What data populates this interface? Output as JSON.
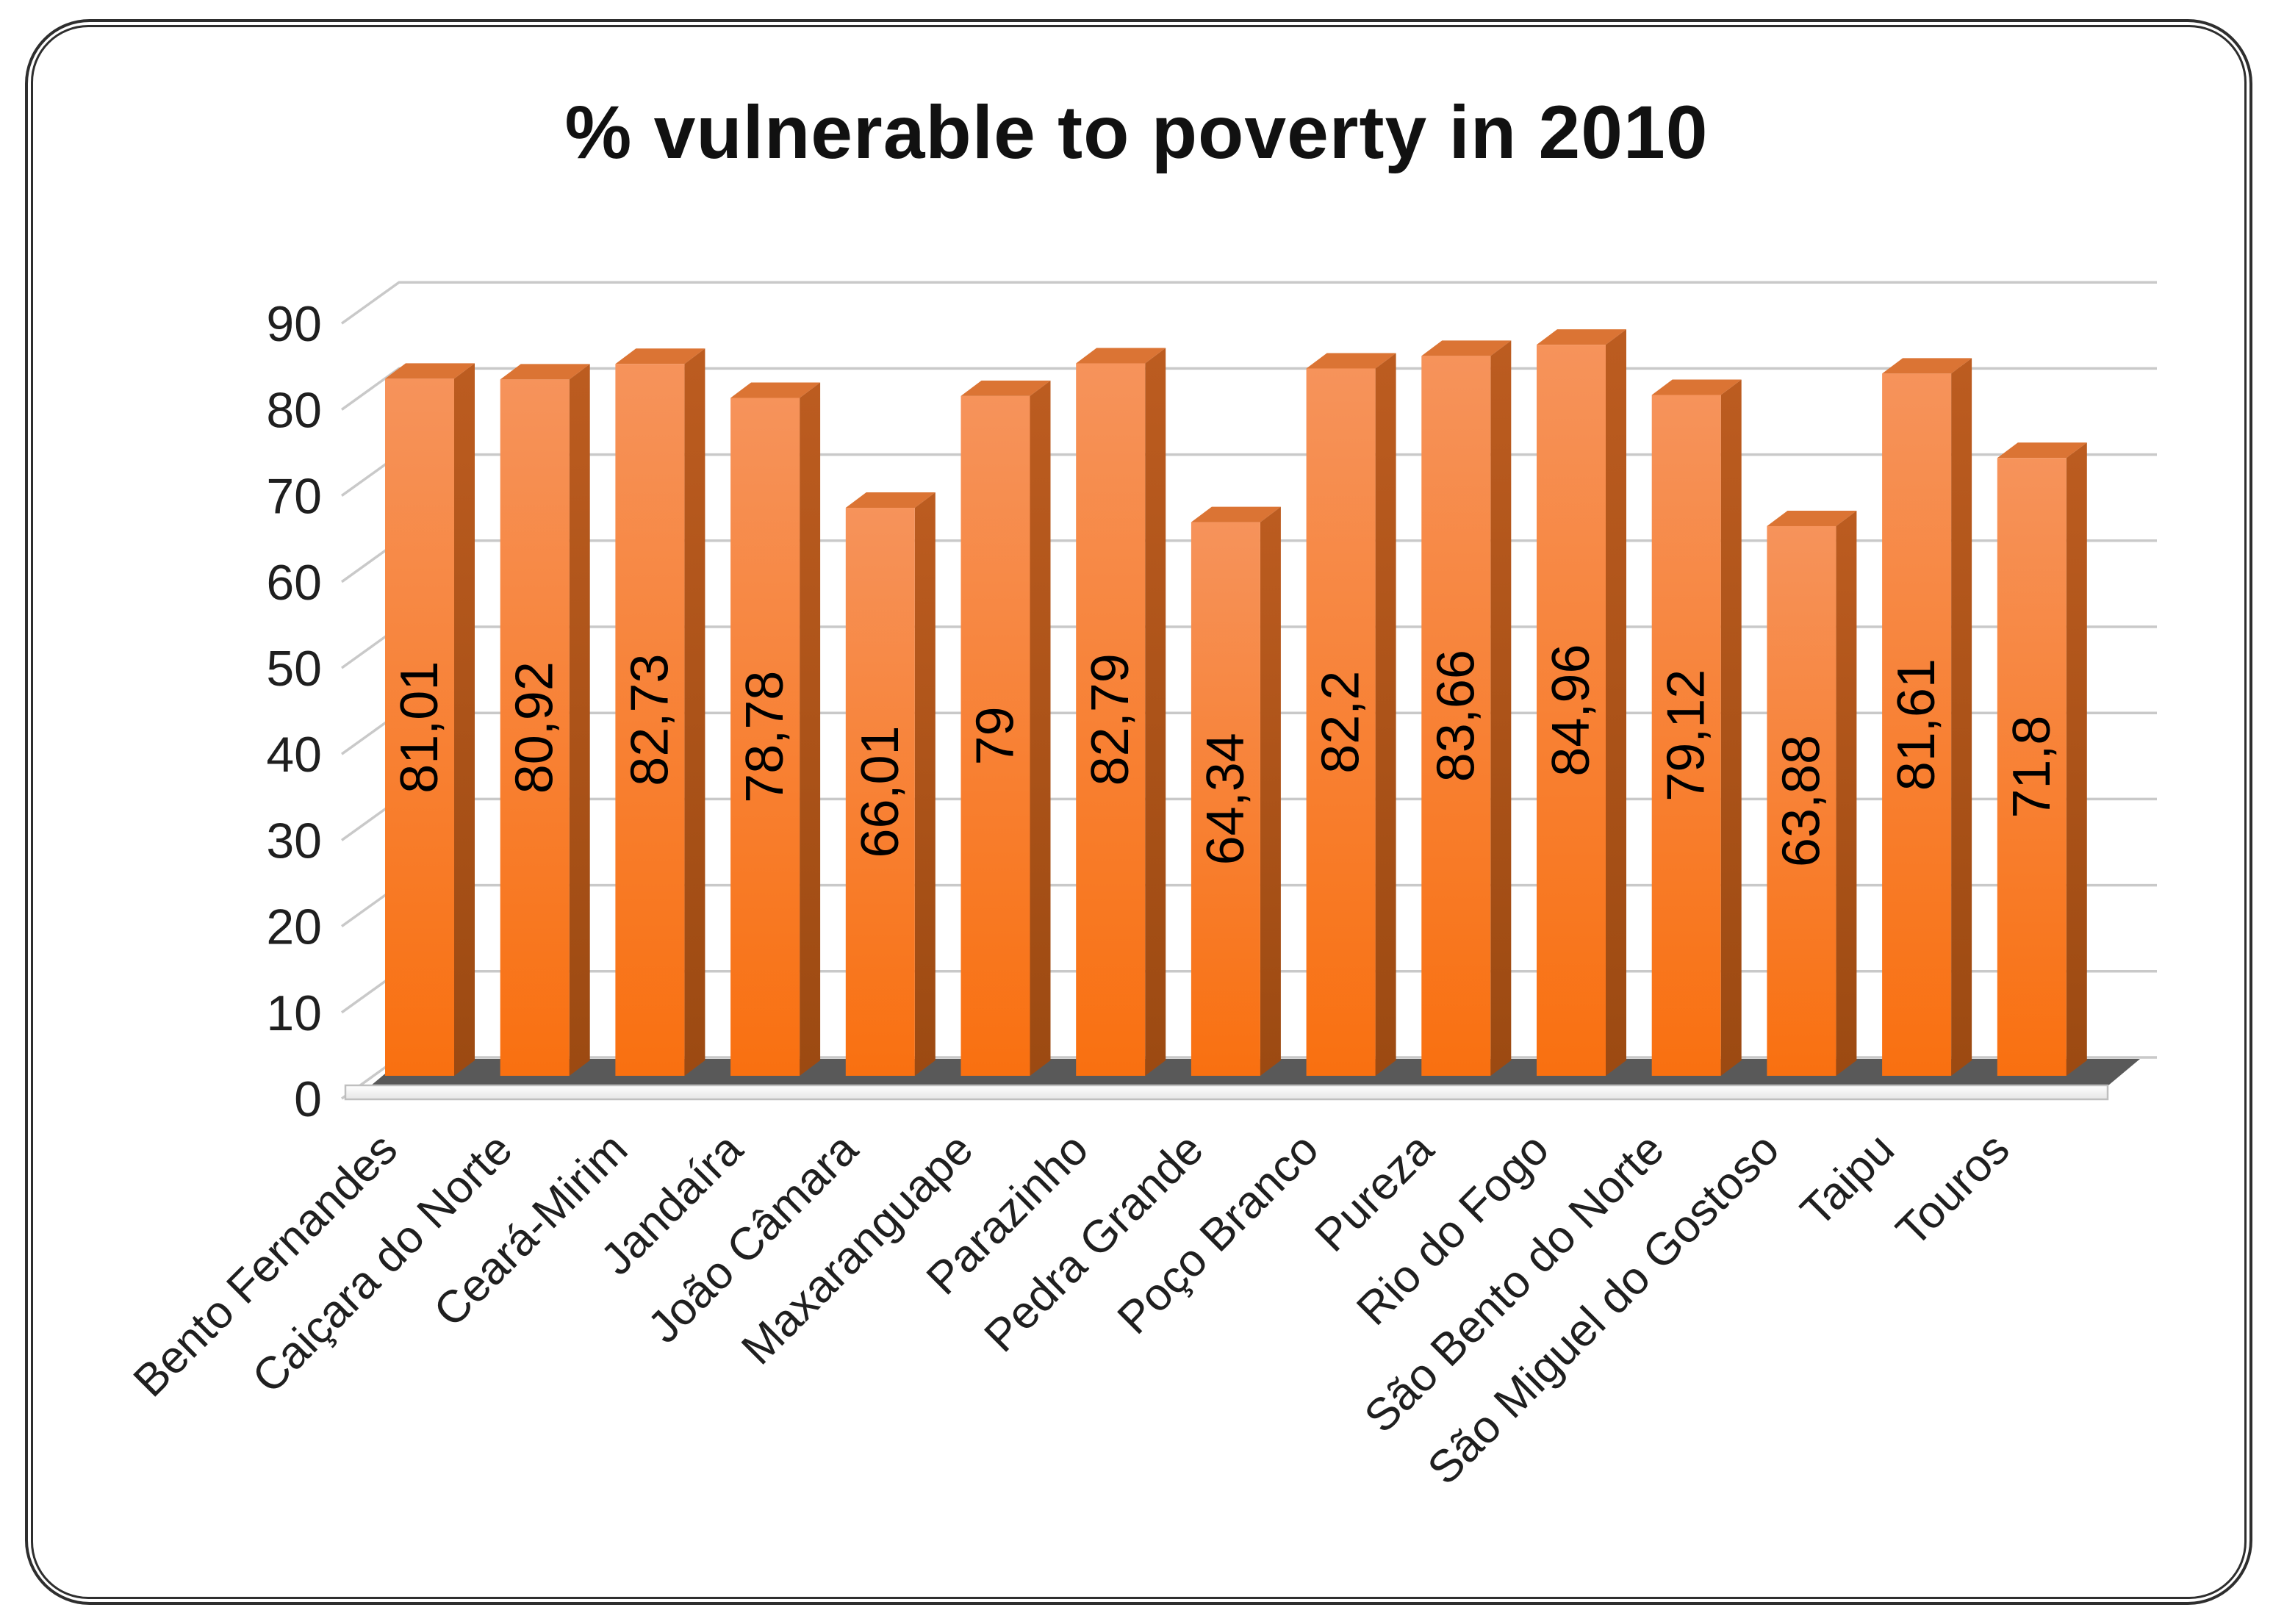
{
  "chart_data": {
    "type": "bar",
    "style": "3d-column",
    "title": "% vulnerable to poverty in 2010",
    "categories": [
      "Bento Fernandes",
      "Caiçara do Norte",
      "Ceará-Mirim",
      "Jandaíra",
      "João Câmara",
      "Maxaranguape",
      "Parazinho",
      "Pedra Grande",
      "Poço Branco",
      "Pureza",
      "Rio do Fogo",
      "São Bento do Norte",
      "São Miguel do Gostoso",
      "Taipu",
      "Touros"
    ],
    "values": [
      81.01,
      80.92,
      82.73,
      78.78,
      66.01,
      79,
      82.79,
      64.34,
      82.2,
      83.66,
      84.96,
      79.12,
      63.88,
      81.61,
      71.8
    ],
    "value_labels": [
      "81,01",
      "80,92",
      "82,73",
      "78,78",
      "66,01",
      "79",
      "82,79",
      "64,34",
      "82,2",
      "83,66",
      "84,96",
      "79,12",
      "63,88",
      "81,61",
      "71,8"
    ],
    "decimal_separator": ",",
    "xlabel": "",
    "ylabel": "",
    "ylim": [
      0,
      90
    ],
    "yticks": [
      0,
      10,
      20,
      30,
      40,
      50,
      60,
      70,
      80,
      90
    ],
    "grid": true,
    "legend": "none",
    "colors": {
      "bar_front_top": "#F6935B",
      "bar_front_bottom": "#F97010",
      "bar_side_top": "#BC5C20",
      "bar_side_bottom": "#9C4A12",
      "bar_top_face": "#DB7434",
      "gridline": "#C9C9C9",
      "floor_dark": "#595959",
      "floor_front": "#FAFAFA",
      "floor_front_border": "#BFBFBF",
      "label_text": "#000000",
      "axis_text": "#1F1F1F",
      "title_text": "#111111",
      "frame_border": "#2E2E2E",
      "background": "#FFFFFF"
    }
  }
}
